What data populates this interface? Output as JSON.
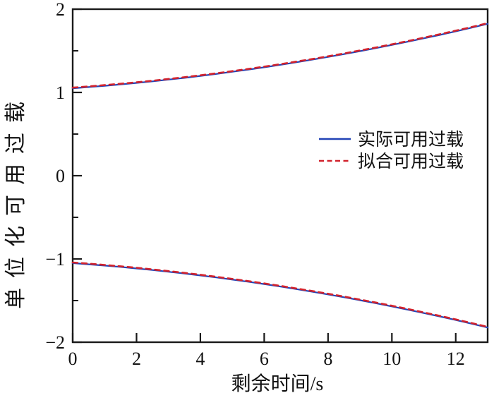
{
  "figure": {
    "background": "#ffffff",
    "frame_color": "#1a1a1a"
  },
  "chart_data": {
    "type": "line",
    "title": "",
    "xlabel": "剩余时间/s",
    "ylabel": "单位化可用过载",
    "xlim": [
      0,
      13
    ],
    "ylim": [
      -2,
      2
    ],
    "grid": false,
    "x_ticks": [
      0,
      2,
      4,
      6,
      8,
      10,
      12
    ],
    "x_tick_labels": [
      "0",
      "2",
      "4",
      "6",
      "8",
      "10",
      "12"
    ],
    "y_ticks": [
      -2,
      -1,
      0,
      1,
      2
    ],
    "y_tick_labels": [
      "−2",
      "−1",
      "0",
      "1",
      "2"
    ],
    "y_minor_ticks": [
      -1.5,
      -0.5,
      0.5,
      1.5
    ],
    "legend": {
      "position": "center-right",
      "frame": false,
      "entries": [
        {
          "label": "实际可用过载",
          "color": "#2243b6",
          "style": "solid"
        },
        {
          "label": "拟合可用过载",
          "color": "#d2232d",
          "style": "dashed"
        }
      ]
    },
    "x": [
      0,
      0.5,
      1,
      1.5,
      2,
      2.5,
      3,
      3.5,
      4,
      4.5,
      5,
      5.5,
      6,
      6.5,
      7,
      7.5,
      8,
      8.5,
      9,
      9.5,
      10,
      10.5,
      11,
      11.5,
      12,
      12.5,
      13
    ],
    "series": [
      {
        "name": "实际可用过载",
        "branch": "upper",
        "color": "#2243b6",
        "style": "solid",
        "width": 2.2,
        "values": [
          1.05,
          1.064,
          1.08,
          1.096,
          1.114,
          1.133,
          1.154,
          1.175,
          1.198,
          1.222,
          1.248,
          1.274,
          1.302,
          1.331,
          1.362,
          1.393,
          1.426,
          1.46,
          1.496,
          1.532,
          1.57,
          1.609,
          1.65,
          1.691,
          1.734,
          1.778,
          1.824
        ]
      },
      {
        "name": "实际可用过载",
        "branch": "lower",
        "color": "#2243b6",
        "style": "solid",
        "width": 2.2,
        "values": [
          -1.05,
          -1.064,
          -1.08,
          -1.096,
          -1.114,
          -1.133,
          -1.154,
          -1.175,
          -1.198,
          -1.222,
          -1.248,
          -1.274,
          -1.302,
          -1.331,
          -1.362,
          -1.393,
          -1.426,
          -1.46,
          -1.496,
          -1.532,
          -1.57,
          -1.609,
          -1.65,
          -1.691,
          -1.734,
          -1.778,
          -1.824
        ]
      },
      {
        "name": "拟合可用过载",
        "branch": "upper",
        "color": "#d2232d",
        "style": "dashed",
        "width": 2.6,
        "values": [
          1.058,
          1.072,
          1.088,
          1.104,
          1.122,
          1.141,
          1.162,
          1.183,
          1.206,
          1.23,
          1.256,
          1.282,
          1.31,
          1.339,
          1.37,
          1.401,
          1.434,
          1.468,
          1.504,
          1.54,
          1.578,
          1.617,
          1.658,
          1.699,
          1.742,
          1.786,
          1.832
        ]
      },
      {
        "name": "拟合可用过载",
        "branch": "lower",
        "color": "#d2232d",
        "style": "dashed",
        "width": 2.6,
        "values": [
          -1.042,
          -1.056,
          -1.072,
          -1.088,
          -1.106,
          -1.125,
          -1.146,
          -1.167,
          -1.19,
          -1.214,
          -1.24,
          -1.266,
          -1.294,
          -1.323,
          -1.354,
          -1.385,
          -1.418,
          -1.452,
          -1.488,
          -1.524,
          -1.562,
          -1.601,
          -1.642,
          -1.683,
          -1.726,
          -1.77,
          -1.816
        ]
      }
    ]
  }
}
